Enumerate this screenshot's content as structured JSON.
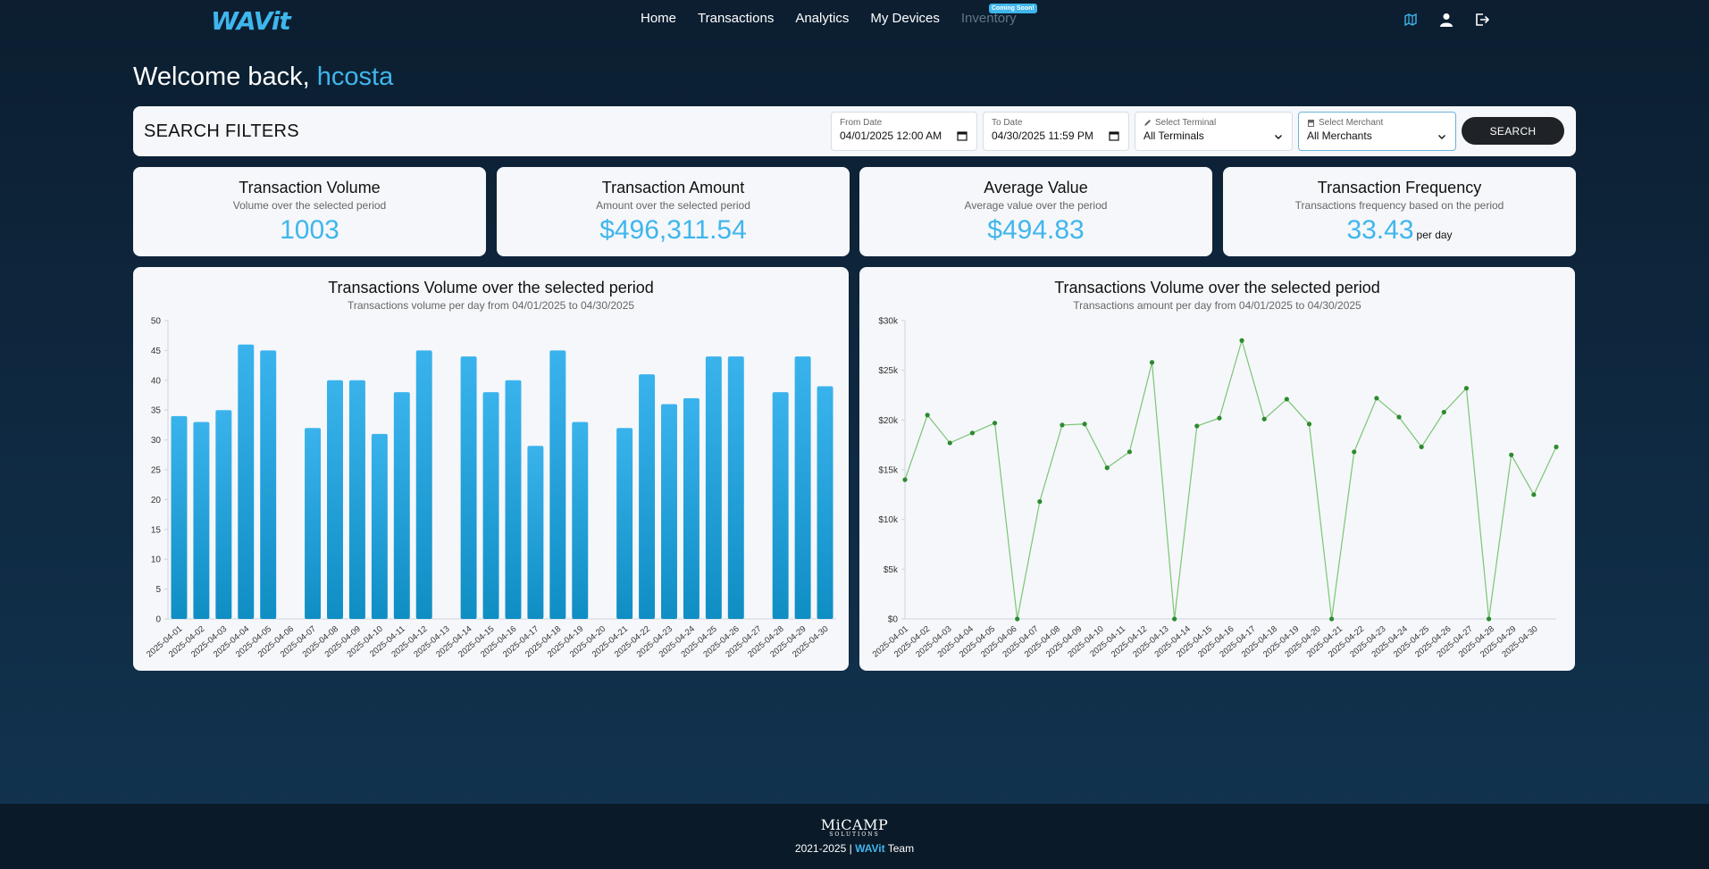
{
  "nav": {
    "logo": "WAVit",
    "links": [
      "Home",
      "Transactions",
      "Analytics",
      "My Devices"
    ],
    "disabled_link": "Inventory",
    "badge": "Coming Soon!",
    "icons": [
      "map-icon",
      "user-icon",
      "logout-icon"
    ]
  },
  "welcome": {
    "prefix": "Welcome back, ",
    "user": "hcosta"
  },
  "filters": {
    "title": "SEARCH FILTERS",
    "from_label": "From Date",
    "from_value": "04/01/2025 12:00  AM",
    "to_label": "To Date",
    "to_value": "04/30/2025 11:59  PM",
    "terminal_label": "Select Terminal",
    "terminal_value": "All Terminals",
    "merchant_label": "Select Merchant",
    "merchant_value": "All Merchants",
    "search": "SEARCH"
  },
  "stats": [
    {
      "title": "Transaction Volume",
      "sub": "Volume over the selected period",
      "value": "1003",
      "unit": ""
    },
    {
      "title": "Transaction Amount",
      "sub": "Amount over the selected period",
      "value": "$496,311.54",
      "unit": ""
    },
    {
      "title": "Average Value",
      "sub": "Average value over the period",
      "value": "$494.83",
      "unit": ""
    },
    {
      "title": "Transaction Frequency",
      "sub": "Transactions frequency based on the period",
      "value": "33.43",
      "unit": "per day"
    }
  ],
  "colors": {
    "accent": "#3fb6ec",
    "bar_top": "#3ab3ec",
    "bar_bottom": "#0f8ec4",
    "line": "#7cc576",
    "point": "#2d8a2d"
  },
  "chart_data": [
    {
      "type": "bar",
      "title": "Transactions Volume over the selected period",
      "subtitle": "Transactions volume per day from 04/01/2025 to 04/30/2025",
      "categories": [
        "2025-04-01",
        "2025-04-02",
        "2025-04-03",
        "2025-04-04",
        "2025-04-05",
        "2025-04-06",
        "2025-04-07",
        "2025-04-08",
        "2025-04-09",
        "2025-04-10",
        "2025-04-11",
        "2025-04-12",
        "2025-04-13",
        "2025-04-14",
        "2025-04-15",
        "2025-04-16",
        "2025-04-17",
        "2025-04-18",
        "2025-04-19",
        "2025-04-20",
        "2025-04-21",
        "2025-04-22",
        "2025-04-23",
        "2025-04-24",
        "2025-04-25",
        "2025-04-26",
        "2025-04-27",
        "2025-04-28",
        "2025-04-29",
        "2025-04-30"
      ],
      "values": [
        34,
        33,
        35,
        46,
        45,
        0,
        32,
        40,
        40,
        31,
        38,
        45,
        0,
        44,
        38,
        40,
        29,
        45,
        33,
        0,
        32,
        41,
        36,
        37,
        44,
        44,
        0,
        38,
        44,
        39
      ],
      "ylim": [
        0,
        50
      ],
      "yticks": [
        0,
        5,
        10,
        15,
        20,
        25,
        30,
        35,
        40,
        45,
        50
      ],
      "ytick_labels": [
        "0",
        "5",
        "10",
        "15",
        "20",
        "25",
        "30",
        "35",
        "40",
        "45",
        "50"
      ],
      "grid": false
    },
    {
      "type": "line",
      "title": "Transactions Volume over the selected period",
      "subtitle": "Transactions amount per day from 04/01/2025 to 04/30/2025",
      "categories": [
        "2025-04-01",
        "2025-04-02",
        "2025-04-03",
        "2025-04-04",
        "2025-04-05",
        "2025-04-06",
        "2025-04-07",
        "2025-04-08",
        "2025-04-09",
        "2025-04-10",
        "2025-04-11",
        "2025-04-12",
        "2025-04-13",
        "2025-04-14",
        "2025-04-15",
        "2025-04-16",
        "2025-04-17",
        "2025-04-18",
        "2025-04-19",
        "2025-04-20",
        "2025-04-21",
        "2025-04-22",
        "2025-04-23",
        "2025-04-24",
        "2025-04-25",
        "2025-04-26",
        "2025-04-27",
        "2025-04-28",
        "2025-04-29",
        "2025-04-30"
      ],
      "values": [
        14000,
        20500,
        17700,
        18700,
        19700,
        0,
        11800,
        19500,
        19600,
        15200,
        16800,
        25800,
        0,
        19400,
        20200,
        28000,
        20100,
        22100,
        19600,
        0,
        16800,
        22200,
        20300,
        17300,
        20800,
        23200,
        0,
        16500,
        12500,
        17300
      ],
      "ylim": [
        0,
        30000
      ],
      "yticks": [
        0,
        5000,
        10000,
        15000,
        20000,
        25000,
        30000
      ],
      "ytick_labels": [
        "$0",
        "$5k",
        "$10k",
        "$15k",
        "$20k",
        "$25k",
        "$30k"
      ],
      "grid": false
    }
  ],
  "footer": {
    "logo": "MiCAMP",
    "logo_sub": "SOLUTIONS",
    "copy_prefix": "2021-2025 | ",
    "brand": "WAVit",
    "copy_suffix": " Team"
  }
}
